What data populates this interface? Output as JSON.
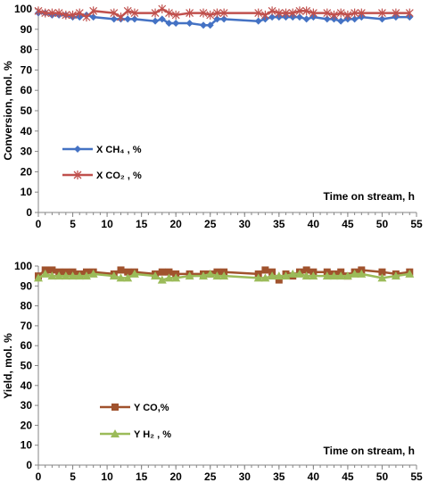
{
  "chart_data": [
    {
      "type": "line",
      "ylabel": "Conversion, mol. %",
      "xlabel": "Time on stream, h",
      "xlim": [
        0,
        55
      ],
      "ylim": [
        0,
        100
      ],
      "xticks": [
        "0",
        "5",
        "10",
        "15",
        "20",
        "25",
        "30",
        "35",
        "40",
        "45",
        "50",
        "55"
      ],
      "yticks": [
        "0",
        "10",
        "20",
        "30",
        "40",
        "50",
        "60",
        "70",
        "80",
        "90",
        "100"
      ],
      "legend_position": "left-middle",
      "series": [
        {
          "name": "X CH₄ , %",
          "color": "#4472C4",
          "marker": "diamond",
          "x": [
            0,
            1,
            2,
            3,
            4,
            5,
            6,
            7,
            8,
            11,
            12,
            13,
            14,
            17,
            18,
            19,
            20,
            22,
            24,
            25,
            26,
            27,
            32,
            33,
            34,
            35,
            36,
            37,
            38,
            39,
            40,
            42,
            43,
            44,
            45,
            46,
            47,
            50,
            52,
            54
          ],
          "y": [
            98,
            98,
            97,
            97,
            97,
            96,
            96,
            97,
            96,
            95,
            95,
            95,
            95,
            94,
            95,
            93,
            93,
            93,
            92,
            92,
            95,
            95,
            94,
            95,
            96,
            96,
            96,
            96,
            96,
            95,
            96,
            95,
            95,
            94,
            95,
            95,
            96,
            95,
            96,
            96
          ]
        },
        {
          "name": "X CO₂ , %",
          "color": "#C0504D",
          "marker": "star",
          "x": [
            0,
            1,
            2,
            3,
            4,
            5,
            6,
            7,
            8,
            11,
            12,
            13,
            14,
            17,
            18,
            19,
            20,
            22,
            24,
            25,
            26,
            27,
            32,
            33,
            34,
            35,
            36,
            37,
            38,
            39,
            40,
            42,
            43,
            44,
            45,
            46,
            47,
            50,
            52,
            54
          ],
          "y": [
            99,
            98,
            98,
            98,
            97,
            97,
            98,
            96,
            99,
            98,
            96,
            99,
            98,
            98,
            100,
            98,
            97,
            98,
            98,
            97,
            98,
            98,
            98,
            97,
            99,
            98,
            98,
            98,
            99,
            99,
            98,
            98,
            97,
            98,
            97,
            98,
            98,
            98,
            98,
            98
          ]
        }
      ]
    },
    {
      "type": "line",
      "ylabel": "Yield, mol. %",
      "xlabel": "Time on stream, h",
      "xlim": [
        0,
        55
      ],
      "ylim": [
        0,
        100
      ],
      "xticks": [
        "0",
        "5",
        "10",
        "15",
        "20",
        "25",
        "30",
        "35",
        "40",
        "45",
        "50",
        "55"
      ],
      "yticks": [
        "0",
        "10",
        "20",
        "30",
        "40",
        "50",
        "60",
        "70",
        "80",
        "90",
        "100"
      ],
      "legend_position": "center-bottom",
      "series": [
        {
          "name": "Y CO,%",
          "color": "#A0522D",
          "marker": "square",
          "x": [
            0,
            1,
            2,
            3,
            4,
            5,
            6,
            7,
            8,
            11,
            12,
            13,
            14,
            17,
            18,
            19,
            20,
            22,
            24,
            25,
            26,
            27,
            32,
            33,
            34,
            35,
            36,
            37,
            38,
            39,
            40,
            42,
            43,
            44,
            45,
            46,
            47,
            50,
            52,
            54
          ],
          "y": [
            95,
            98,
            98,
            97,
            97,
            97,
            96,
            97,
            97,
            96,
            98,
            97,
            97,
            96,
            97,
            97,
            96,
            96,
            96,
            96,
            97,
            97,
            96,
            98,
            97,
            93,
            96,
            95,
            97,
            98,
            97,
            97,
            96,
            97,
            95,
            97,
            98,
            97,
            96,
            97
          ]
        },
        {
          "name": "Y H₂ , %",
          "color": "#9BBB59",
          "marker": "triangle",
          "x": [
            0,
            1,
            2,
            3,
            4,
            5,
            6,
            7,
            8,
            11,
            12,
            13,
            14,
            17,
            18,
            19,
            20,
            22,
            24,
            25,
            26,
            27,
            32,
            33,
            34,
            35,
            36,
            37,
            38,
            39,
            40,
            42,
            43,
            44,
            45,
            46,
            47,
            50,
            52,
            54
          ],
          "y": [
            94,
            96,
            95,
            95,
            95,
            95,
            95,
            95,
            96,
            95,
            94,
            94,
            96,
            95,
            93,
            94,
            94,
            95,
            95,
            96,
            95,
            95,
            94,
            94,
            95,
            95,
            95,
            96,
            96,
            95,
            95,
            95,
            95,
            95,
            95,
            96,
            96,
            94,
            95,
            96
          ]
        }
      ]
    }
  ]
}
